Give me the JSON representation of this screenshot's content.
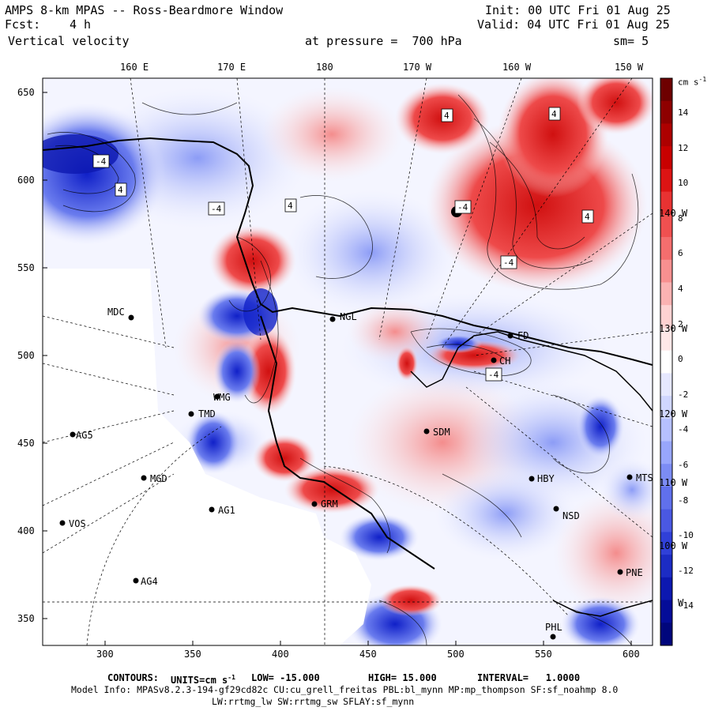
{
  "header": {
    "title": "AMPS 8-km MPAS -- Ross-Beardmore Window",
    "fcst_label": "Fcst:",
    "fcst_value": "4 h",
    "field": "Vertical velocity",
    "level": "at pressure =  700 hPa",
    "init": "Init: 00 UTC Fri 01 Aug 25",
    "valid": "Valid: 04 UTC Fri 01 Aug 25",
    "smoothing": "sm= 5"
  },
  "lon_labels_top": [
    "160 E",
    "170 E",
    "180",
    "170 W",
    "160 W",
    "150 W"
  ],
  "lon_labels_right": [
    "140 W",
    "130 W",
    "120 W",
    "110 W",
    "100 W",
    "W"
  ],
  "x_ticks": [
    "300",
    "350",
    "400",
    "450",
    "500",
    "550",
    "600"
  ],
  "y_ticks": [
    "650",
    "600",
    "550",
    "500",
    "450",
    "400",
    "350"
  ],
  "colorbar": {
    "units": "cm s",
    "units_exp": "-1",
    "labels": [
      "14",
      "12",
      "10",
      "8",
      "6",
      "4",
      "2",
      "0",
      "-2",
      "-4",
      "-6",
      "-8",
      "-10",
      "-12",
      "-14"
    ],
    "colors": [
      "#6e0000",
      "#8e0000",
      "#ad0000",
      "#c80000",
      "#dc1414",
      "#e83232",
      "#f05050",
      "#f46e6e",
      "#f89090",
      "#fbb2b2",
      "#fed2d2",
      "#ffe8e8",
      "#ffffff",
      "#e6e8ff",
      "#d0d6ff",
      "#b6c0ff",
      "#98a6fc",
      "#7c8cf4",
      "#6070ec",
      "#4a58e2",
      "#3040d8",
      "#1c2cc4",
      "#0c18b0",
      "#040c98",
      "#00067c"
    ]
  },
  "stations": [
    {
      "name": "MDC"
    },
    {
      "name": "NGL"
    },
    {
      "name": "AG5"
    },
    {
      "name": "TMD"
    },
    {
      "name": "SDM"
    },
    {
      "name": "MGD"
    },
    {
      "name": "AG1"
    },
    {
      "name": "GRM"
    },
    {
      "name": "VOS"
    },
    {
      "name": "AG4"
    },
    {
      "name": "HBY"
    },
    {
      "name": "NSD"
    },
    {
      "name": "MTS"
    },
    {
      "name": "PNE"
    },
    {
      "name": "PHL"
    },
    {
      "name": "FD"
    },
    {
      "name": "CH"
    },
    {
      "name": "WMG"
    }
  ],
  "contour_labels": [
    "4",
    "-4",
    "4",
    "-4",
    "4",
    "-4",
    "4",
    "-4",
    "4",
    "-4"
  ],
  "footer": {
    "contours_label": "CONTOURS:",
    "units_text": "UNITS=cm s",
    "units_exp": "-1",
    "low": "LOW= -15.000",
    "high": "HIGH= 15.000",
    "interval": "INTERVAL=   1.0000",
    "model_info": "Model Info: MPASv8.2.3-194-gf29cd82c CU:cu_grell_freitas PBL:bl_mynn MP:mp_thompson SF:sf_noahmp 8.0",
    "model_info2": "LW:rrtmg_lw SW:rrtmg_sw SFLAY:sf_mynn"
  }
}
